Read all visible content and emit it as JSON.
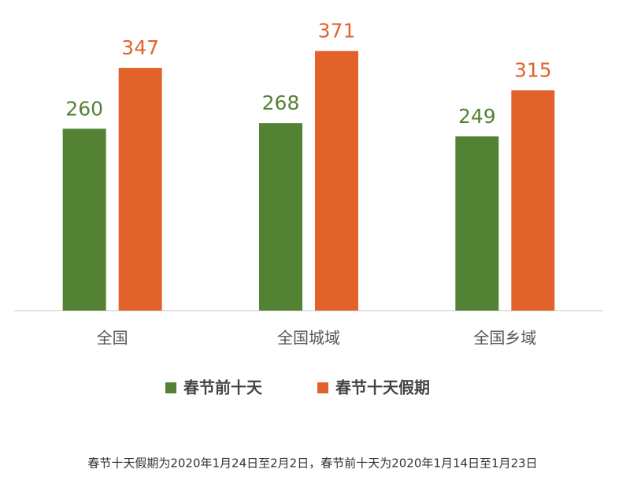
{
  "chart_data": {
    "type": "bar",
    "categories": [
      "全国",
      "全国城域",
      "全国乡域"
    ],
    "series": [
      {
        "name": "春节前十天",
        "color": "#548235",
        "values": [
          260,
          268,
          249
        ]
      },
      {
        "name": "春节十天假期",
        "color": "#e2622b",
        "values": [
          347,
          371,
          315
        ]
      }
    ],
    "ylim": [
      0,
      400
    ],
    "legend": "bottom",
    "footnote": "春节十天假期为2020年1月24日至2月2日，春节前十天为2020年1月14日至1月23日"
  }
}
